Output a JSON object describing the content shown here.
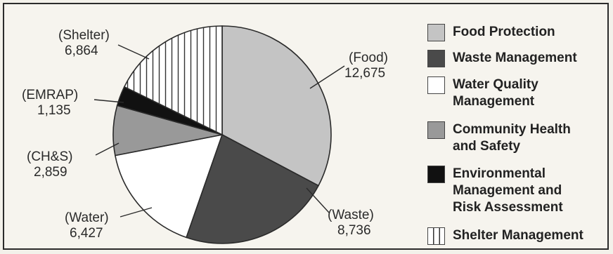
{
  "chart_data": {
    "type": "pie",
    "start_angle_deg": 0,
    "direction": "clockwise",
    "slices": [
      {
        "key": "food",
        "callout": "(Food)",
        "value": 12675,
        "value_label": "12,675",
        "fill": "#c4c4c4",
        "pattern": "solid"
      },
      {
        "key": "waste",
        "callout": "(Waste)",
        "value": 8736,
        "value_label": "8,736",
        "fill": "#4a4a4a",
        "pattern": "solid"
      },
      {
        "key": "water",
        "callout": "(Water)",
        "value": 6427,
        "value_label": "6,427",
        "fill": "#ffffff",
        "pattern": "solid"
      },
      {
        "key": "chs",
        "callout": "(CH&S)",
        "value": 2859,
        "value_label": "2,859",
        "fill": "#999999",
        "pattern": "solid"
      },
      {
        "key": "emrap",
        "callout": "(EMRAP)",
        "value": 1135,
        "value_label": "1,135",
        "fill": "#111111",
        "pattern": "solid"
      },
      {
        "key": "shelter",
        "callout": "(Shelter)",
        "value": 6864,
        "value_label": "6,864",
        "fill": "#ffffff",
        "pattern": "vertical-stripes"
      }
    ]
  },
  "legend": {
    "placement": "right",
    "items": [
      {
        "label": "Food Protection",
        "fill": "#c4c4c4",
        "pattern": "solid"
      },
      {
        "label": "Waste Management",
        "fill": "#4a4a4a",
        "pattern": "solid"
      },
      {
        "label": "Water Quality\nManagement",
        "fill": "#ffffff",
        "pattern": "solid"
      },
      {
        "label": "Community Health\nand Safety",
        "fill": "#999999",
        "pattern": "solid"
      },
      {
        "label": "Environmental\nManagement and\nRisk Assessment",
        "fill": "#111111",
        "pattern": "solid"
      },
      {
        "label": "Shelter Management",
        "fill": "#ffffff",
        "pattern": "vertical-stripes"
      }
    ]
  }
}
